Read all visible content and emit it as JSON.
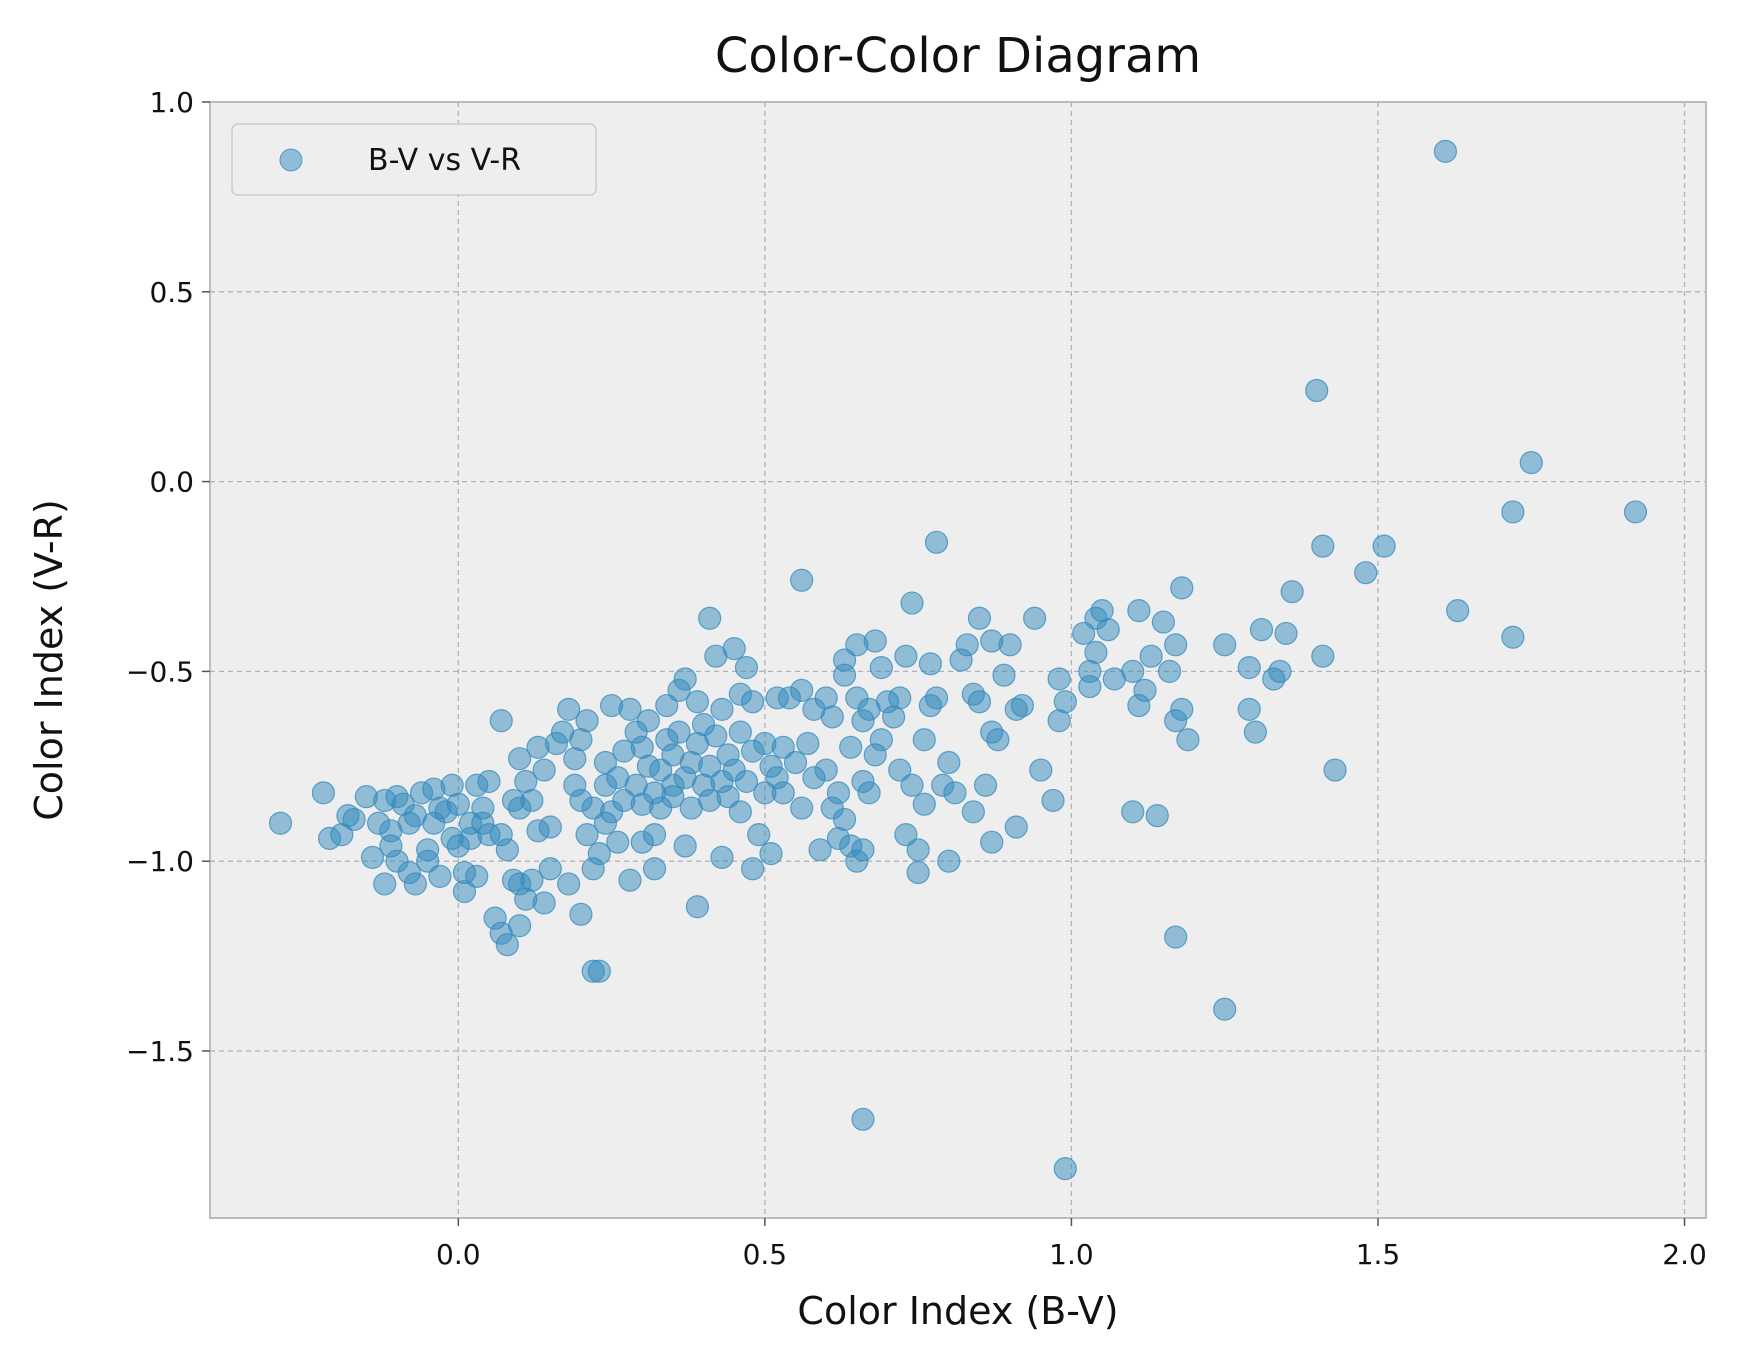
{
  "chart_data": {
    "type": "scatter",
    "title": "Color-Color Diagram",
    "xlabel": "Color Index (B-V)",
    "ylabel": "Color Index (V-R)",
    "xlim": [
      -0.405,
      2.035
    ],
    "ylim": [
      -1.94,
      1.0
    ],
    "xticks": [
      0.0,
      0.5,
      1.0,
      1.5,
      2.0
    ],
    "xtick_labels": [
      "0.0",
      "0.5",
      "1.0",
      "1.5",
      "2.0"
    ],
    "yticks": [
      1.0,
      0.5,
      0.0,
      -0.5,
      -1.0,
      -1.5
    ],
    "ytick_labels": [
      "1.0",
      "0.5",
      "0.0",
      "−0.5",
      "−1.0",
      "−1.5"
    ],
    "grid": true,
    "legend_position": "top-left",
    "series": [
      {
        "name": "B-V vs V-R",
        "color": "#348ABD",
        "alpha": 0.5,
        "points": [
          [
            -0.29,
            -0.9
          ],
          [
            -0.22,
            -0.82
          ],
          [
            -0.21,
            -0.94
          ],
          [
            -0.19,
            -0.93
          ],
          [
            -0.18,
            -0.88
          ],
          [
            -0.17,
            -0.89
          ],
          [
            -0.15,
            -0.83
          ],
          [
            -0.14,
            -0.99
          ],
          [
            -0.13,
            -0.9
          ],
          [
            -0.12,
            -1.06
          ],
          [
            -0.12,
            -0.84
          ],
          [
            -0.11,
            -0.96
          ],
          [
            -0.11,
            -0.92
          ],
          [
            -0.1,
            -0.83
          ],
          [
            -0.1,
            -1.0
          ],
          [
            -0.09,
            -0.85
          ],
          [
            -0.08,
            -0.9
          ],
          [
            -0.08,
            -1.03
          ],
          [
            -0.07,
            -1.06
          ],
          [
            -0.07,
            -0.88
          ],
          [
            -0.06,
            -0.82
          ],
          [
            -0.05,
            -0.97
          ],
          [
            -0.05,
            -1.0
          ],
          [
            -0.04,
            -0.81
          ],
          [
            -0.04,
            -0.9
          ],
          [
            -0.03,
            -1.04
          ],
          [
            -0.03,
            -0.86
          ],
          [
            -0.02,
            -0.87
          ],
          [
            -0.01,
            -0.94
          ],
          [
            -0.01,
            -0.8
          ],
          [
            0.0,
            -0.85
          ],
          [
            0.0,
            -0.96
          ],
          [
            0.01,
            -1.03
          ],
          [
            0.01,
            -1.08
          ],
          [
            0.02,
            -0.9
          ],
          [
            0.02,
            -0.94
          ],
          [
            0.03,
            -1.04
          ],
          [
            0.03,
            -0.8
          ],
          [
            0.04,
            -0.86
          ],
          [
            0.04,
            -0.9
          ],
          [
            0.05,
            -0.79
          ],
          [
            0.05,
            -0.93
          ],
          [
            0.06,
            -1.15
          ],
          [
            0.07,
            -1.19
          ],
          [
            0.07,
            -0.93
          ],
          [
            0.07,
            -0.63
          ],
          [
            0.08,
            -1.22
          ],
          [
            0.08,
            -0.97
          ],
          [
            0.09,
            -0.84
          ],
          [
            0.09,
            -1.05
          ],
          [
            0.1,
            -1.17
          ],
          [
            0.1,
            -0.86
          ],
          [
            0.1,
            -1.06
          ],
          [
            0.1,
            -0.73
          ],
          [
            0.11,
            -0.79
          ],
          [
            0.11,
            -1.1
          ],
          [
            0.12,
            -0.84
          ],
          [
            0.12,
            -1.05
          ],
          [
            0.13,
            -0.92
          ],
          [
            0.13,
            -0.7
          ],
          [
            0.14,
            -1.11
          ],
          [
            0.14,
            -0.76
          ],
          [
            0.15,
            -0.91
          ],
          [
            0.15,
            -1.02
          ],
          [
            0.16,
            -0.69
          ],
          [
            0.17,
            -0.66
          ],
          [
            0.18,
            -0.6
          ],
          [
            0.18,
            -1.06
          ],
          [
            0.19,
            -0.8
          ],
          [
            0.19,
            -0.73
          ],
          [
            0.2,
            -1.14
          ],
          [
            0.2,
            -0.84
          ],
          [
            0.2,
            -0.68
          ],
          [
            0.21,
            -0.93
          ],
          [
            0.21,
            -0.63
          ],
          [
            0.22,
            -0.86
          ],
          [
            0.22,
            -1.02
          ],
          [
            0.23,
            -0.98
          ],
          [
            0.23,
            -1.29
          ],
          [
            0.24,
            -0.8
          ],
          [
            0.24,
            -0.74
          ],
          [
            0.24,
            -0.9
          ],
          [
            0.25,
            -0.87
          ],
          [
            0.25,
            -0.59
          ],
          [
            0.26,
            -0.95
          ],
          [
            0.26,
            -0.78
          ],
          [
            0.27,
            -0.71
          ],
          [
            0.27,
            -0.84
          ],
          [
            0.28,
            -1.05
          ],
          [
            0.28,
            -0.6
          ],
          [
            0.29,
            -0.8
          ],
          [
            0.29,
            -0.66
          ],
          [
            0.3,
            -0.95
          ],
          [
            0.3,
            -0.85
          ],
          [
            0.3,
            -0.7
          ],
          [
            0.31,
            -0.75
          ],
          [
            0.31,
            -0.63
          ],
          [
            0.32,
            -0.82
          ],
          [
            0.32,
            -0.93
          ],
          [
            0.32,
            -1.02
          ],
          [
            0.33,
            -0.76
          ],
          [
            0.33,
            -0.86
          ],
          [
            0.34,
            -0.68
          ],
          [
            0.34,
            -0.59
          ],
          [
            0.35,
            -0.8
          ],
          [
            0.35,
            -0.72
          ],
          [
            0.35,
            -0.83
          ],
          [
            0.36,
            -0.55
          ],
          [
            0.36,
            -0.66
          ],
          [
            0.37,
            -0.78
          ],
          [
            0.37,
            -0.52
          ],
          [
            0.37,
            -0.96
          ],
          [
            0.38,
            -0.74
          ],
          [
            0.38,
            -0.86
          ],
          [
            0.39,
            -0.58
          ],
          [
            0.39,
            -0.69
          ],
          [
            0.39,
            -1.12
          ],
          [
            0.4,
            -0.8
          ],
          [
            0.4,
            -0.64
          ],
          [
            0.41,
            -0.84
          ],
          [
            0.41,
            -0.36
          ],
          [
            0.41,
            -0.75
          ],
          [
            0.42,
            -0.46
          ],
          [
            0.42,
            -0.67
          ],
          [
            0.43,
            -0.79
          ],
          [
            0.43,
            -0.6
          ],
          [
            0.43,
            -0.99
          ],
          [
            0.44,
            -0.72
          ],
          [
            0.44,
            -0.83
          ],
          [
            0.45,
            -0.44
          ],
          [
            0.45,
            -0.76
          ],
          [
            0.46,
            -0.66
          ],
          [
            0.46,
            -0.56
          ],
          [
            0.46,
            -0.87
          ],
          [
            0.47,
            -0.49
          ],
          [
            0.47,
            -0.79
          ],
          [
            0.48,
            -0.71
          ],
          [
            0.48,
            -0.58
          ],
          [
            0.48,
            -1.02
          ],
          [
            0.49,
            -0.93
          ],
          [
            0.5,
            -0.82
          ],
          [
            0.5,
            -0.69
          ],
          [
            0.51,
            -0.75
          ],
          [
            0.51,
            -0.98
          ],
          [
            0.52,
            -0.78
          ],
          [
            0.52,
            -0.57
          ],
          [
            0.53,
            -0.7
          ],
          [
            0.53,
            -0.82
          ],
          [
            0.54,
            -0.57
          ],
          [
            0.55,
            -0.74
          ],
          [
            0.56,
            -0.55
          ],
          [
            0.56,
            -0.26
          ],
          [
            0.56,
            -0.86
          ],
          [
            0.57,
            -0.69
          ],
          [
            0.58,
            -0.6
          ],
          [
            0.58,
            -0.78
          ],
          [
            0.59,
            -0.97
          ],
          [
            0.6,
            -0.76
          ],
          [
            0.6,
            -0.57
          ],
          [
            0.61,
            -0.62
          ],
          [
            0.61,
            -0.86
          ],
          [
            0.62,
            -0.82
          ],
          [
            0.62,
            -0.94
          ],
          [
            0.63,
            -0.47
          ],
          [
            0.63,
            -0.51
          ],
          [
            0.63,
            -0.89
          ],
          [
            0.64,
            -0.7
          ],
          [
            0.64,
            -0.96
          ],
          [
            0.65,
            -0.43
          ],
          [
            0.65,
            -0.57
          ],
          [
            0.65,
            -1.0
          ],
          [
            0.66,
            -0.79
          ],
          [
            0.66,
            -0.63
          ],
          [
            0.66,
            -0.97
          ],
          [
            0.67,
            -0.82
          ],
          [
            0.67,
            -0.6
          ],
          [
            0.68,
            -0.42
          ],
          [
            0.68,
            -0.72
          ],
          [
            0.69,
            -0.49
          ],
          [
            0.69,
            -0.68
          ],
          [
            0.7,
            -0.58
          ],
          [
            0.71,
            -0.62
          ],
          [
            0.72,
            -0.57
          ],
          [
            0.72,
            -0.76
          ],
          [
            0.73,
            -0.46
          ],
          [
            0.73,
            -0.93
          ],
          [
            0.74,
            -0.32
          ],
          [
            0.74,
            -0.8
          ],
          [
            0.75,
            -0.97
          ],
          [
            0.75,
            -1.03
          ],
          [
            0.76,
            -0.68
          ],
          [
            0.76,
            -0.85
          ],
          [
            0.77,
            -0.59
          ],
          [
            0.77,
            -0.48
          ],
          [
            0.78,
            -0.16
          ],
          [
            0.78,
            -0.57
          ],
          [
            0.79,
            -0.8
          ],
          [
            0.8,
            -1.0
          ],
          [
            0.8,
            -0.74
          ],
          [
            0.81,
            -0.82
          ],
          [
            0.82,
            -0.47
          ],
          [
            0.83,
            -0.43
          ],
          [
            0.84,
            -0.56
          ],
          [
            0.84,
            -0.87
          ],
          [
            0.85,
            -0.36
          ],
          [
            0.85,
            -0.58
          ],
          [
            0.86,
            -0.8
          ],
          [
            0.87,
            -0.42
          ],
          [
            0.87,
            -0.66
          ],
          [
            0.87,
            -0.95
          ],
          [
            0.88,
            -0.68
          ],
          [
            0.89,
            -0.51
          ],
          [
            0.9,
            -0.43
          ],
          [
            0.91,
            -0.91
          ],
          [
            0.91,
            -0.6
          ],
          [
            0.92,
            -0.59
          ],
          [
            0.94,
            -0.36
          ],
          [
            0.95,
            -0.76
          ],
          [
            0.97,
            -0.84
          ],
          [
            0.98,
            -0.63
          ],
          [
            0.98,
            -0.52
          ],
          [
            0.99,
            -0.58
          ],
          [
            1.02,
            -0.4
          ],
          [
            1.03,
            -0.5
          ],
          [
            1.03,
            -0.54
          ],
          [
            1.04,
            -0.36
          ],
          [
            1.04,
            -0.45
          ],
          [
            1.05,
            -0.34
          ],
          [
            1.06,
            -0.39
          ],
          [
            1.07,
            -0.52
          ],
          [
            1.1,
            -0.5
          ],
          [
            1.1,
            -0.87
          ],
          [
            1.11,
            -0.34
          ],
          [
            1.11,
            -0.59
          ],
          [
            1.12,
            -0.55
          ],
          [
            1.13,
            -0.46
          ],
          [
            1.14,
            -0.88
          ],
          [
            1.15,
            -0.37
          ],
          [
            1.16,
            -0.5
          ],
          [
            1.17,
            -0.43
          ],
          [
            1.17,
            -0.63
          ],
          [
            1.18,
            -0.6
          ],
          [
            1.18,
            -0.28
          ],
          [
            1.19,
            -0.68
          ],
          [
            1.17,
            -1.2
          ],
          [
            1.25,
            -0.43
          ],
          [
            1.25,
            -1.39
          ],
          [
            1.29,
            -0.49
          ],
          [
            1.29,
            -0.6
          ],
          [
            1.3,
            -0.66
          ],
          [
            1.31,
            -0.39
          ],
          [
            1.33,
            -0.52
          ],
          [
            1.34,
            -0.5
          ],
          [
            1.35,
            -0.4
          ],
          [
            1.36,
            -0.29
          ],
          [
            1.4,
            0.24
          ],
          [
            1.41,
            -0.17
          ],
          [
            1.41,
            -0.46
          ],
          [
            1.43,
            -0.76
          ],
          [
            1.48,
            -0.24
          ],
          [
            1.51,
            -0.17
          ],
          [
            1.61,
            0.87
          ],
          [
            1.63,
            -0.34
          ],
          [
            1.72,
            -0.41
          ],
          [
            1.72,
            -0.08
          ],
          [
            1.75,
            0.05
          ],
          [
            1.92,
            -0.08
          ],
          [
            0.66,
            -1.68
          ],
          [
            0.99,
            -1.81
          ],
          [
            0.22,
            -1.29
          ]
        ]
      }
    ]
  }
}
